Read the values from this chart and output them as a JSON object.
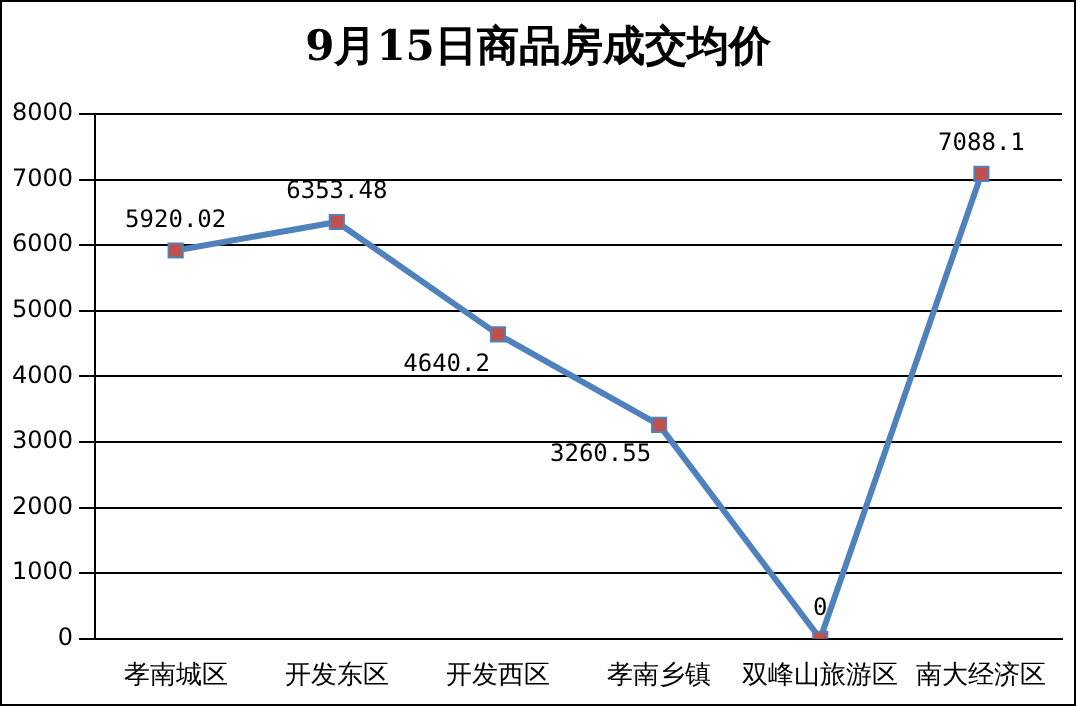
{
  "chart_data": {
    "type": "line",
    "title": "9月15日商品房成交均价",
    "categories": [
      "孝南城区",
      "开发东区",
      "开发西区",
      "孝南乡镇",
      "双峰山旅游区",
      "南大经济区"
    ],
    "series": [
      {
        "color": "#4f81bd",
        "values": [
          5920.02,
          6353.48,
          4640.2,
          3260.55,
          0,
          7088.1
        ]
      }
    ],
    "ylim": [
      0,
      8000
    ],
    "yticks": [
      0,
      1000,
      2000,
      3000,
      4000,
      5000,
      6000,
      7000,
      8000
    ],
    "grid": "y",
    "legend": false,
    "marker": "square",
    "line_style": "solid",
    "data_labels": true
  }
}
